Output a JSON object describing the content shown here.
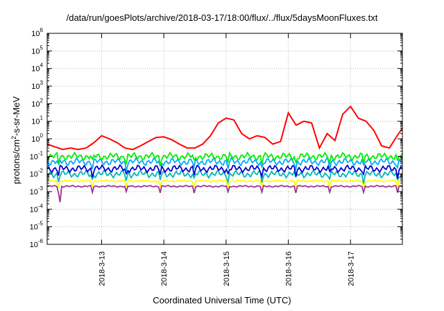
{
  "chart_data": {
    "type": "line",
    "title": "/data/run/goesPlots/archive/2018-03-17/18:00/flux/../flux/5daysMoonFluxes.txt",
    "xlabel": "Coordinated Universal Time (UTC)",
    "ylabel": {
      "pre": "protons/cm",
      "sup": "2",
      "post": "-s-sr-MeV"
    },
    "yscale": "log",
    "ylim": [
      1e-06,
      1000000.0
    ],
    "xlim": [
      "2018-03-12 03:00",
      "2018-03-17 20:00"
    ],
    "x_ticks": [
      "2018-3-13",
      "2018-3-14",
      "2018-3-15",
      "2018-3-16",
      "2018-3-17"
    ],
    "y_ticks": [
      "10^-6",
      "10^-5",
      "10^-4",
      "10^-3",
      "10^-2",
      "10^-1",
      "10^0",
      "10^1",
      "10^2",
      "10^3",
      "10^4",
      "10^5",
      "10^6"
    ],
    "grid": true,
    "series": [
      {
        "color": "#ff0000",
        "x": [
          "2018-03-12 03:00",
          "2018-03-12 06:00",
          "2018-03-12 09:00",
          "2018-03-12 12:00",
          "2018-03-12 15:00",
          "2018-03-12 18:00",
          "2018-03-12 21:00",
          "2018-03-13 00:00",
          "2018-03-13 03:00",
          "2018-03-13 06:00",
          "2018-03-13 09:00",
          "2018-03-13 12:00",
          "2018-03-13 15:00",
          "2018-03-13 18:00",
          "2018-03-13 21:00",
          "2018-03-14 00:00",
          "2018-03-14 03:00",
          "2018-03-14 06:00",
          "2018-03-14 09:00",
          "2018-03-14 12:00",
          "2018-03-14 15:00",
          "2018-03-14 18:00",
          "2018-03-14 21:00",
          "2018-03-15 00:00",
          "2018-03-15 03:00",
          "2018-03-15 06:00",
          "2018-03-15 09:00",
          "2018-03-15 12:00",
          "2018-03-15 15:00",
          "2018-03-15 18:00",
          "2018-03-15 21:00",
          "2018-03-16 00:00",
          "2018-03-16 03:00",
          "2018-03-16 06:00",
          "2018-03-16 09:00",
          "2018-03-16 12:00",
          "2018-03-16 15:00",
          "2018-03-16 18:00",
          "2018-03-16 21:00",
          "2018-03-17 00:00",
          "2018-03-17 03:00",
          "2018-03-17 06:00",
          "2018-03-17 09:00",
          "2018-03-17 12:00",
          "2018-03-17 15:00",
          "2018-03-17 18:00",
          "2018-03-17 20:00"
        ],
        "values": [
          0.5,
          0.35,
          0.25,
          0.3,
          0.25,
          0.3,
          0.6,
          1.5,
          1.0,
          0.6,
          0.3,
          0.25,
          0.4,
          0.7,
          1.2,
          1.3,
          0.9,
          0.5,
          0.3,
          0.3,
          0.5,
          1.5,
          8,
          15,
          12,
          2,
          1,
          1.5,
          1.2,
          0.5,
          0.7,
          30,
          6,
          10,
          8,
          0.3,
          2,
          0.8,
          25,
          70,
          15,
          10,
          3,
          0.4,
          0.3,
          1.5,
          4
        ]
      },
      {
        "color": "#00ee00",
        "level": 0.1
      },
      {
        "color": "#00aaff",
        "level": 0.05
      },
      {
        "color": "#0000cc",
        "level": 0.02
      },
      {
        "color": "#00b8b8",
        "level": 0.01
      },
      {
        "color": "#ffff00",
        "level": 0.004
      },
      {
        "color": "#993399",
        "level": 0.002
      }
    ]
  }
}
